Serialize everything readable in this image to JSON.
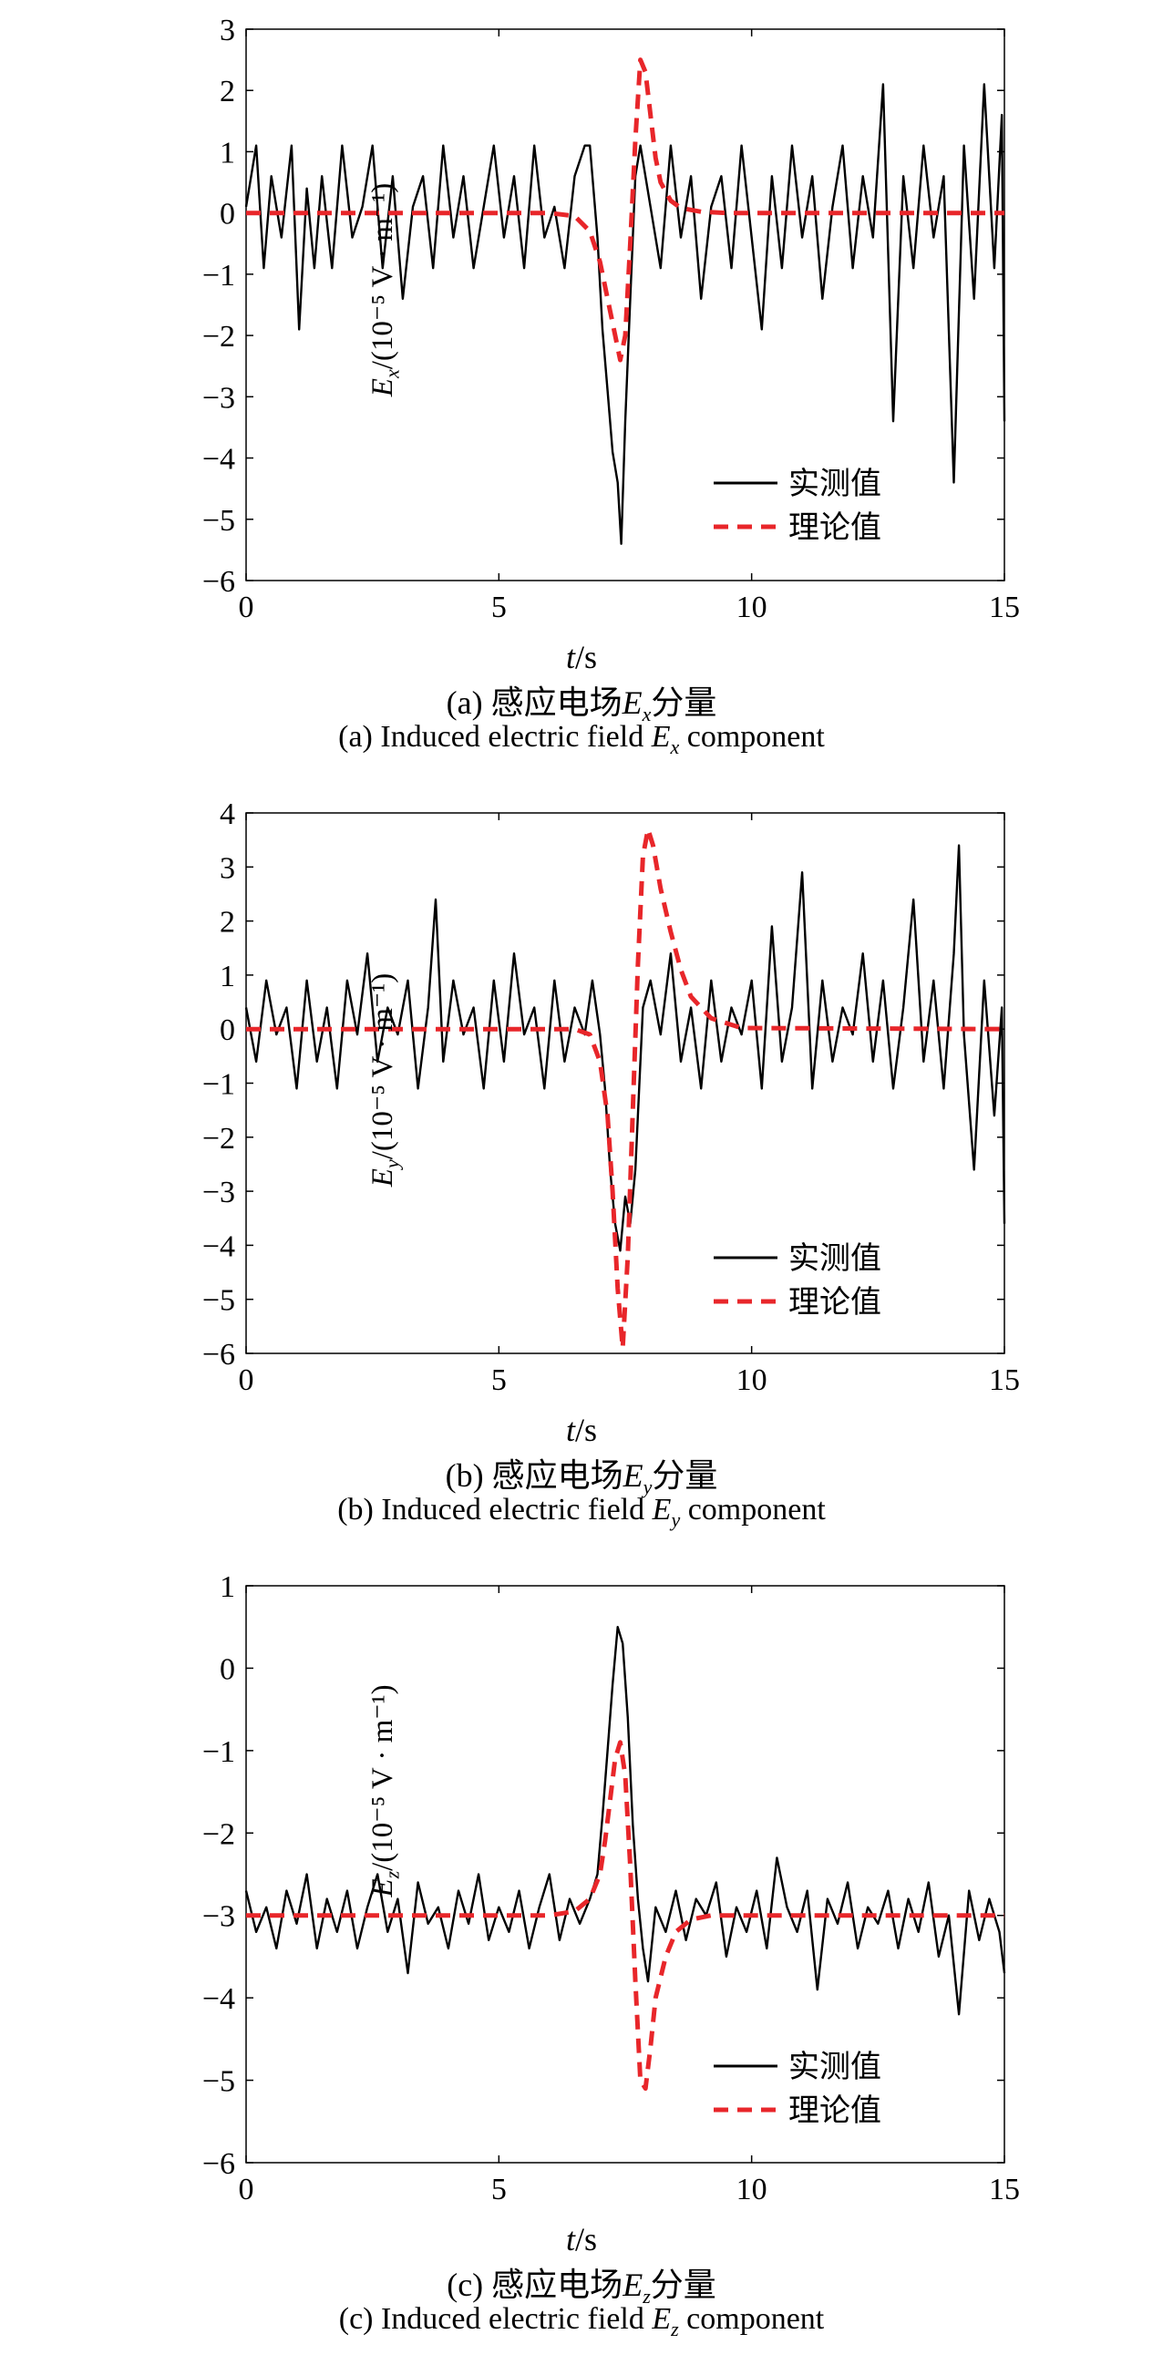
{
  "legend": {
    "measured": "实测值",
    "theory": "理论值"
  },
  "xlabel": {
    "var": "t",
    "unit": "/s"
  },
  "ylabel_unit": "/(10⁻⁵ V · m⁻¹)",
  "colors": {
    "measured": "#000000",
    "theory": "#e8262a"
  },
  "chart_data": [
    {
      "type": "line",
      "ylabel_var": "E",
      "ylabel_sub": "x",
      "caption_cn_prefix": "(a) 感应电场",
      "caption_cn_suffix": "分量",
      "caption_en_prefix": "(a) Induced electric field ",
      "caption_en_suffix": " component",
      "caption_sym_var": "E",
      "caption_sym_sub": "x",
      "xlim": [
        0,
        15
      ],
      "ylim": [
        -6,
        3
      ],
      "xticks": [
        0,
        5,
        10,
        15
      ],
      "yticks": [
        -6,
        -5,
        -4,
        -3,
        -2,
        -1,
        0,
        1,
        2,
        3
      ],
      "series": [
        {
          "name": "实测值",
          "x": [
            0.0,
            0.2,
            0.35,
            0.5,
            0.7,
            0.9,
            1.05,
            1.2,
            1.35,
            1.5,
            1.7,
            1.9,
            2.1,
            2.3,
            2.5,
            2.7,
            2.9,
            3.1,
            3.3,
            3.5,
            3.7,
            3.9,
            4.1,
            4.3,
            4.5,
            4.7,
            4.9,
            5.1,
            5.3,
            5.5,
            5.7,
            5.9,
            6.1,
            6.3,
            6.5,
            6.7,
            6.8,
            6.95,
            7.05,
            7.15,
            7.25,
            7.35,
            7.42,
            7.5,
            7.6,
            7.7,
            7.8,
            8.0,
            8.2,
            8.4,
            8.6,
            8.8,
            9.0,
            9.2,
            9.4,
            9.6,
            9.8,
            10.0,
            10.2,
            10.4,
            10.6,
            10.8,
            11.0,
            11.2,
            11.4,
            11.6,
            11.8,
            12.0,
            12.2,
            12.4,
            12.6,
            12.8,
            13.0,
            13.2,
            13.4,
            13.6,
            13.8,
            14.0,
            14.2,
            14.4,
            14.6,
            14.8,
            14.95,
            15.0
          ],
          "y": [
            0.1,
            1.1,
            -0.9,
            0.6,
            -0.4,
            1.1,
            -1.9,
            0.4,
            -0.9,
            0.6,
            -0.9,
            1.1,
            -0.4,
            0.1,
            1.1,
            -0.9,
            0.6,
            -1.4,
            0.1,
            0.6,
            -0.9,
            1.1,
            -0.4,
            0.6,
            -0.9,
            0.1,
            1.1,
            -0.4,
            0.6,
            -0.9,
            1.1,
            -0.4,
            0.1,
            -0.9,
            0.6,
            1.1,
            1.1,
            -0.4,
            -1.9,
            -2.9,
            -3.9,
            -4.4,
            -5.4,
            -3.4,
            -1.4,
            0.6,
            1.1,
            0.1,
            -0.9,
            1.1,
            -0.4,
            0.6,
            -1.4,
            0.1,
            0.6,
            -0.9,
            1.1,
            -0.4,
            -1.9,
            0.6,
            -0.9,
            1.1,
            -0.4,
            0.6,
            -1.4,
            0.1,
            1.1,
            -0.9,
            0.6,
            -0.4,
            2.1,
            -3.4,
            0.6,
            -0.9,
            1.1,
            -0.4,
            0.6,
            -4.4,
            1.1,
            -1.4,
            2.1,
            -0.9,
            1.6,
            -3.4
          ]
        },
        {
          "name": "理论值",
          "x": [
            0,
            6.0,
            6.5,
            6.8,
            7.0,
            7.2,
            7.4,
            7.5,
            7.6,
            7.7,
            7.8,
            7.9,
            8.0,
            8.1,
            8.2,
            8.4,
            8.6,
            9.0,
            9.5,
            15
          ],
          "y": [
            0,
            0,
            -0.05,
            -0.3,
            -0.8,
            -1.6,
            -2.4,
            -2.0,
            -0.5,
            1.2,
            2.5,
            2.3,
            1.6,
            0.9,
            0.5,
            0.2,
            0.08,
            0.02,
            0,
            0
          ]
        }
      ]
    },
    {
      "type": "line",
      "ylabel_var": "E",
      "ylabel_sub": "y",
      "caption_cn_prefix": "(b) 感应电场",
      "caption_cn_suffix": "分量",
      "caption_en_prefix": "(b) Induced electric field ",
      "caption_en_suffix": " component",
      "caption_sym_var": "E",
      "caption_sym_sub": "y",
      "xlim": [
        0,
        15
      ],
      "ylim": [
        -6,
        4
      ],
      "xticks": [
        0,
        5,
        10,
        15
      ],
      "yticks": [
        -6,
        -5,
        -4,
        -3,
        -2,
        -1,
        0,
        1,
        2,
        3,
        4
      ],
      "series": [
        {
          "name": "实测值",
          "x": [
            0.0,
            0.2,
            0.4,
            0.6,
            0.8,
            1.0,
            1.2,
            1.4,
            1.6,
            1.8,
            2.0,
            2.2,
            2.4,
            2.6,
            2.8,
            3.0,
            3.2,
            3.4,
            3.6,
            3.75,
            3.9,
            4.1,
            4.3,
            4.5,
            4.7,
            4.9,
            5.1,
            5.3,
            5.5,
            5.7,
            5.9,
            6.1,
            6.3,
            6.5,
            6.7,
            6.85,
            7.0,
            7.1,
            7.2,
            7.3,
            7.4,
            7.5,
            7.6,
            7.7,
            7.85,
            8.0,
            8.2,
            8.4,
            8.6,
            8.8,
            9.0,
            9.2,
            9.4,
            9.6,
            9.8,
            10.0,
            10.2,
            10.4,
            10.6,
            10.8,
            11.0,
            11.2,
            11.4,
            11.6,
            11.8,
            12.0,
            12.2,
            12.4,
            12.6,
            12.8,
            13.0,
            13.2,
            13.4,
            13.6,
            13.8,
            14.0,
            14.1,
            14.2,
            14.4,
            14.6,
            14.8,
            14.95,
            15.0
          ],
          "y": [
            0.4,
            -0.6,
            0.9,
            -0.1,
            0.4,
            -1.1,
            0.9,
            -0.6,
            0.4,
            -1.1,
            0.9,
            -0.1,
            1.4,
            -0.6,
            0.4,
            -0.1,
            0.9,
            -1.1,
            0.4,
            2.4,
            -0.6,
            0.9,
            -0.1,
            0.4,
            -1.1,
            0.9,
            -0.6,
            1.4,
            -0.1,
            0.4,
            -1.1,
            0.9,
            -0.6,
            0.4,
            -0.1,
            0.9,
            -0.1,
            -1.1,
            -2.6,
            -3.6,
            -4.1,
            -3.1,
            -3.6,
            -2.6,
            0.4,
            0.9,
            -0.1,
            1.4,
            -0.6,
            0.4,
            -1.1,
            0.9,
            -0.6,
            0.4,
            -0.1,
            0.9,
            -1.1,
            1.9,
            -0.6,
            0.4,
            2.9,
            -1.1,
            0.9,
            -0.6,
            0.4,
            -0.1,
            1.4,
            -0.6,
            0.9,
            -1.1,
            0.4,
            2.4,
            -0.6,
            0.9,
            -1.1,
            1.4,
            3.4,
            -0.1,
            -2.6,
            0.9,
            -1.6,
            0.4,
            -3.6
          ]
        },
        {
          "name": "理论值",
          "x": [
            0,
            6.5,
            6.8,
            7.0,
            7.15,
            7.25,
            7.35,
            7.45,
            7.55,
            7.65,
            7.75,
            7.85,
            7.95,
            8.05,
            8.2,
            8.4,
            8.6,
            8.8,
            9.2,
            9.8,
            15
          ],
          "y": [
            0,
            0,
            -0.1,
            -0.6,
            -1.6,
            -3.0,
            -4.8,
            -5.9,
            -4.2,
            -1.5,
            1.2,
            3.2,
            3.7,
            3.4,
            2.6,
            1.8,
            1.1,
            0.6,
            0.2,
            0.02,
            0
          ]
        }
      ]
    },
    {
      "type": "line",
      "ylabel_var": "E",
      "ylabel_sub": "z",
      "caption_cn_prefix": "(c) 感应电场",
      "caption_cn_suffix": "分量",
      "caption_en_prefix": "(c) Induced electric field ",
      "caption_en_suffix": " component",
      "caption_sym_var": "E",
      "caption_sym_sub": "z",
      "xlim": [
        0,
        15
      ],
      "ylim": [
        -6,
        1
      ],
      "xticks": [
        0,
        5,
        10,
        15
      ],
      "yticks": [
        -6,
        -5,
        -4,
        -3,
        -2,
        -1,
        0,
        1
      ],
      "series": [
        {
          "name": "实测值",
          "x": [
            0.0,
            0.2,
            0.4,
            0.6,
            0.8,
            1.0,
            1.2,
            1.4,
            1.6,
            1.8,
            2.0,
            2.2,
            2.4,
            2.6,
            2.8,
            3.0,
            3.2,
            3.4,
            3.6,
            3.8,
            4.0,
            4.2,
            4.4,
            4.6,
            4.8,
            5.0,
            5.2,
            5.4,
            5.6,
            5.8,
            6.0,
            6.2,
            6.4,
            6.6,
            6.8,
            6.95,
            7.05,
            7.15,
            7.25,
            7.35,
            7.45,
            7.55,
            7.65,
            7.75,
            7.85,
            7.95,
            8.1,
            8.3,
            8.5,
            8.7,
            8.9,
            9.1,
            9.3,
            9.5,
            9.7,
            9.9,
            10.1,
            10.3,
            10.5,
            10.7,
            10.9,
            11.1,
            11.3,
            11.5,
            11.7,
            11.9,
            12.1,
            12.3,
            12.5,
            12.7,
            12.9,
            13.1,
            13.3,
            13.5,
            13.7,
            13.9,
            14.1,
            14.3,
            14.5,
            14.7,
            14.9,
            15.0
          ],
          "y": [
            -2.7,
            -3.2,
            -2.9,
            -3.4,
            -2.7,
            -3.1,
            -2.5,
            -3.4,
            -2.8,
            -3.2,
            -2.7,
            -3.4,
            -2.9,
            -2.5,
            -3.2,
            -2.8,
            -3.7,
            -2.6,
            -3.1,
            -2.9,
            -3.4,
            -2.7,
            -3.1,
            -2.5,
            -3.3,
            -2.9,
            -3.2,
            -2.7,
            -3.4,
            -2.9,
            -2.5,
            -3.3,
            -2.8,
            -3.1,
            -2.8,
            -2.5,
            -1.8,
            -1.0,
            -0.2,
            0.5,
            0.3,
            -0.6,
            -1.9,
            -2.8,
            -3.4,
            -3.8,
            -2.9,
            -3.2,
            -2.7,
            -3.3,
            -2.8,
            -3.0,
            -2.6,
            -3.5,
            -2.9,
            -3.2,
            -2.7,
            -3.4,
            -2.3,
            -2.9,
            -3.2,
            -2.7,
            -3.9,
            -2.8,
            -3.1,
            -2.6,
            -3.4,
            -2.9,
            -3.1,
            -2.7,
            -3.4,
            -2.8,
            -3.2,
            -2.6,
            -3.5,
            -3.0,
            -4.2,
            -2.7,
            -3.3,
            -2.8,
            -3.2,
            -3.7
          ]
        },
        {
          "name": "理论值",
          "x": [
            0,
            6.0,
            6.5,
            6.8,
            7.0,
            7.1,
            7.2,
            7.3,
            7.4,
            7.5,
            7.6,
            7.7,
            7.8,
            7.9,
            8.0,
            8.1,
            8.3,
            8.5,
            8.8,
            9.2,
            15
          ],
          "y": [
            -3,
            -3,
            -2.95,
            -2.8,
            -2.5,
            -2.1,
            -1.6,
            -1.1,
            -0.9,
            -1.3,
            -2.4,
            -3.8,
            -5.0,
            -5.1,
            -4.6,
            -4.0,
            -3.5,
            -3.2,
            -3.05,
            -3.0,
            -3.0
          ]
        }
      ]
    }
  ]
}
